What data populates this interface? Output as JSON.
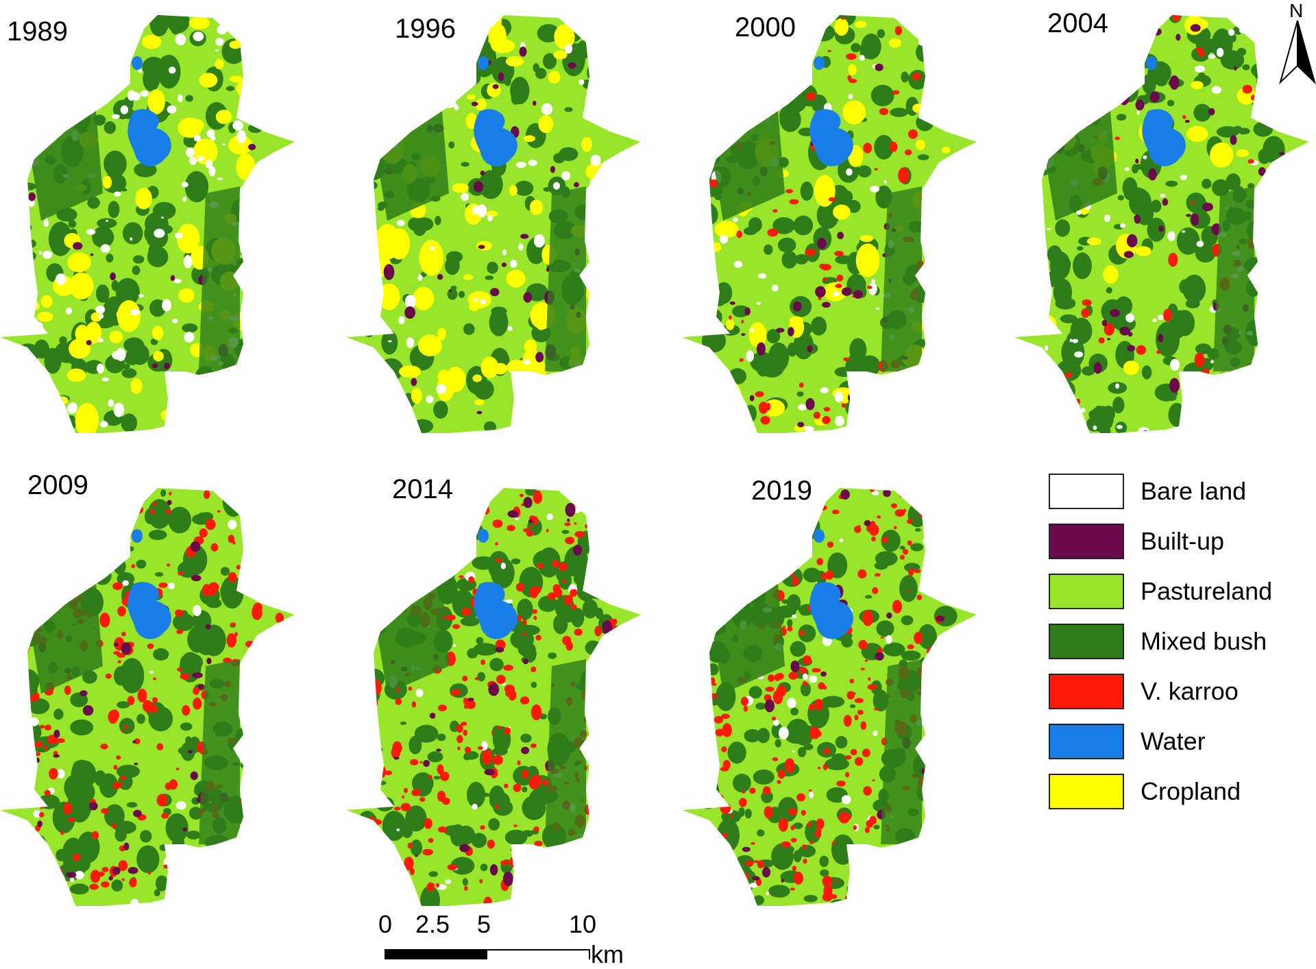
{
  "panels": [
    {
      "year": "1989",
      "mix": {
        "pasture": 0.6,
        "bush": 0.18,
        "bare": 0.12,
        "karroo": 0.0,
        "crop": 0.08,
        "built": 0.02
      }
    },
    {
      "year": "1996",
      "mix": {
        "pasture": 0.62,
        "bush": 0.16,
        "bare": 0.06,
        "karroo": 0.0,
        "crop": 0.1,
        "built": 0.06
      }
    },
    {
      "year": "2000",
      "mix": {
        "pasture": 0.55,
        "bush": 0.2,
        "bare": 0.05,
        "karroo": 0.1,
        "crop": 0.05,
        "built": 0.05
      }
    },
    {
      "year": "2004",
      "mix": {
        "pasture": 0.55,
        "bush": 0.22,
        "bare": 0.08,
        "karroo": 0.05,
        "crop": 0.03,
        "built": 0.07
      }
    },
    {
      "year": "2009",
      "mix": {
        "pasture": 0.45,
        "bush": 0.2,
        "bare": 0.04,
        "karroo": 0.26,
        "crop": 0.0,
        "built": 0.05
      }
    },
    {
      "year": "2014",
      "mix": {
        "pasture": 0.4,
        "bush": 0.2,
        "bare": 0.05,
        "karroo": 0.31,
        "crop": 0.0,
        "built": 0.04
      }
    },
    {
      "year": "2019",
      "mix": {
        "pasture": 0.4,
        "bush": 0.21,
        "bare": 0.05,
        "karroo": 0.3,
        "crop": 0.0,
        "built": 0.04
      }
    }
  ],
  "legend": [
    {
      "key": "bare",
      "label": "Bare land",
      "color": "#ffffff"
    },
    {
      "key": "built",
      "label": "Built-up",
      "color": "#6b0a4a"
    },
    {
      "key": "pasture",
      "label": "Pastureland",
      "color": "#98e52a"
    },
    {
      "key": "bush",
      "label": "Mixed bush",
      "color": "#2e7d1a"
    },
    {
      "key": "karroo",
      "label": "V. karroo",
      "color": "#ff1a0a"
    },
    {
      "key": "water",
      "label": "Water",
      "color": "#1a7ee8"
    },
    {
      "key": "crop",
      "label": "Cropland",
      "color": "#ffff00"
    }
  ],
  "scalebar": {
    "ticks": [
      "0",
      "2.5",
      "5",
      "10"
    ],
    "unit": "km"
  },
  "north_arrow": {
    "label": "N"
  }
}
